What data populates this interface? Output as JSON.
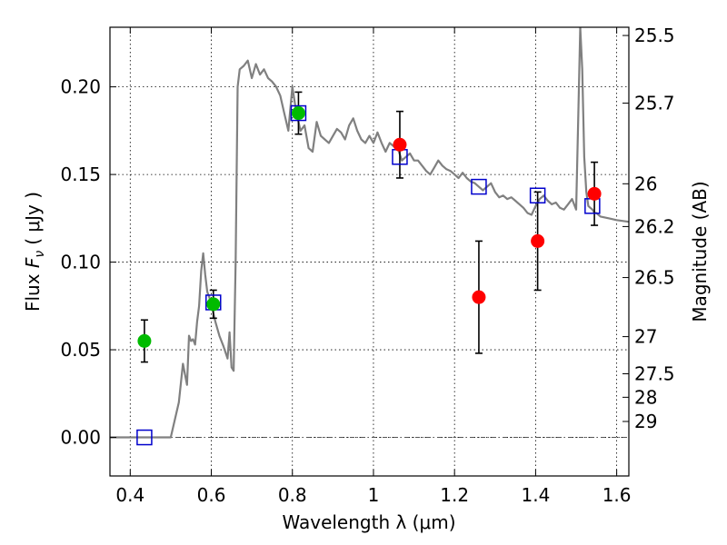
{
  "chart_data": {
    "type": "scatter",
    "xlabel": "Wavelength  λ (μm)",
    "ylabel": {
      "prefix": "Flux ",
      "symbol": "F",
      "subscript": "ν",
      "units": "( μJy )"
    },
    "y2label": "Magnitude (AB)",
    "xlim": [
      0.35,
      1.63
    ],
    "ylim": [
      -0.022,
      0.234
    ],
    "xticks": [
      0.4,
      0.6,
      0.8,
      1.0,
      1.2,
      1.4,
      1.6
    ],
    "xtick_labels": [
      "0.4",
      "0.6",
      "0.8",
      "1",
      "1.2",
      "1.4",
      "1.6"
    ],
    "yticks": [
      0.0,
      0.05,
      0.1,
      0.15,
      0.2
    ],
    "ytick_labels": [
      "0.00",
      "0.05",
      "0.10",
      "0.15",
      "0.20"
    ],
    "y2ticks": [
      {
        "label": "25.5",
        "flux": 0.2293
      },
      {
        "label": "25.7",
        "flux": 0.1907
      },
      {
        "label": "26",
        "flux": 0.1447
      },
      {
        "label": "26.2",
        "flux": 0.1203
      },
      {
        "label": "26.5",
        "flux": 0.0912
      },
      {
        "label": "27",
        "flux": 0.0575
      },
      {
        "label": "27.5",
        "flux": 0.0363
      },
      {
        "label": "28",
        "flux": 0.0229
      },
      {
        "label": "29",
        "flux": 0.0091
      }
    ],
    "grid": true,
    "zero_line": true,
    "colors": {
      "model": "#808080",
      "green": "#00bb00",
      "red": "#ff0000",
      "synthetic": "#0000cc",
      "errorbar": "#000000",
      "zero_line": "#555555"
    },
    "series": [
      {
        "kind": "model_spectrum",
        "x": [
          0.35,
          0.48,
          0.5,
          0.52,
          0.53,
          0.54,
          0.545,
          0.55,
          0.555,
          0.56,
          0.565,
          0.57,
          0.575,
          0.58,
          0.585,
          0.59,
          0.595,
          0.6,
          0.61,
          0.62,
          0.63,
          0.64,
          0.645,
          0.65,
          0.655,
          0.66,
          0.665,
          0.67,
          0.68,
          0.69,
          0.7,
          0.71,
          0.72,
          0.73,
          0.74,
          0.75,
          0.76,
          0.77,
          0.78,
          0.79,
          0.8,
          0.81,
          0.82,
          0.83,
          0.84,
          0.85,
          0.86,
          0.87,
          0.88,
          0.89,
          0.9,
          0.91,
          0.92,
          0.93,
          0.94,
          0.95,
          0.96,
          0.97,
          0.98,
          0.99,
          1.0,
          1.01,
          1.02,
          1.03,
          1.04,
          1.05,
          1.06,
          1.07,
          1.08,
          1.09,
          1.1,
          1.11,
          1.12,
          1.13,
          1.14,
          1.15,
          1.16,
          1.17,
          1.18,
          1.19,
          1.2,
          1.21,
          1.22,
          1.23,
          1.24,
          1.25,
          1.26,
          1.27,
          1.28,
          1.29,
          1.3,
          1.31,
          1.32,
          1.33,
          1.34,
          1.35,
          1.36,
          1.37,
          1.38,
          1.39,
          1.4,
          1.41,
          1.42,
          1.43,
          1.44,
          1.45,
          1.46,
          1.47,
          1.48,
          1.49,
          1.5,
          1.505,
          1.51,
          1.515,
          1.52,
          1.525,
          1.53,
          1.535,
          1.54,
          1.545,
          1.55,
          1.56,
          1.58,
          1.6,
          1.63
        ],
        "y": [
          0.0,
          0.0,
          0.0,
          0.02,
          0.042,
          0.03,
          0.058,
          0.055,
          0.056,
          0.053,
          0.066,
          0.075,
          0.095,
          0.105,
          0.093,
          0.083,
          0.08,
          0.076,
          0.066,
          0.058,
          0.052,
          0.045,
          0.06,
          0.04,
          0.038,
          0.1,
          0.2,
          0.21,
          0.212,
          0.215,
          0.205,
          0.213,
          0.207,
          0.21,
          0.205,
          0.203,
          0.2,
          0.195,
          0.185,
          0.175,
          0.2,
          0.185,
          0.175,
          0.178,
          0.165,
          0.163,
          0.18,
          0.172,
          0.17,
          0.168,
          0.172,
          0.176,
          0.174,
          0.17,
          0.178,
          0.182,
          0.175,
          0.17,
          0.168,
          0.172,
          0.168,
          0.174,
          0.168,
          0.163,
          0.168,
          0.166,
          0.165,
          0.158,
          0.16,
          0.162,
          0.158,
          0.158,
          0.155,
          0.152,
          0.15,
          0.154,
          0.158,
          0.155,
          0.153,
          0.152,
          0.15,
          0.148,
          0.151,
          0.148,
          0.146,
          0.145,
          0.143,
          0.141,
          0.143,
          0.145,
          0.14,
          0.137,
          0.138,
          0.136,
          0.137,
          0.135,
          0.133,
          0.131,
          0.128,
          0.127,
          0.132,
          0.136,
          0.138,
          0.135,
          0.133,
          0.134,
          0.131,
          0.13,
          0.133,
          0.136,
          0.13,
          0.18,
          0.234,
          0.21,
          0.16,
          0.14,
          0.132,
          0.131,
          0.13,
          0.128,
          0.128,
          0.126,
          0.125,
          0.124,
          0.123
        ]
      },
      {
        "kind": "green_points",
        "x": [
          0.435,
          0.605,
          0.815
        ],
        "y": [
          0.055,
          0.076,
          0.185
        ],
        "yerr": [
          0.012,
          0.008,
          0.012
        ]
      },
      {
        "kind": "red_points",
        "x": [
          1.065,
          1.26,
          1.405,
          1.545
        ],
        "y": [
          0.167,
          0.08,
          0.112,
          0.139
        ],
        "yerr": [
          0.019,
          0.032,
          0.028,
          0.018
        ]
      },
      {
        "kind": "synthetic_squares",
        "x": [
          0.435,
          0.605,
          0.815,
          1.065,
          1.26,
          1.405,
          1.54
        ],
        "y": [
          0.0,
          0.077,
          0.185,
          0.16,
          0.143,
          0.138,
          0.132
        ]
      }
    ]
  }
}
